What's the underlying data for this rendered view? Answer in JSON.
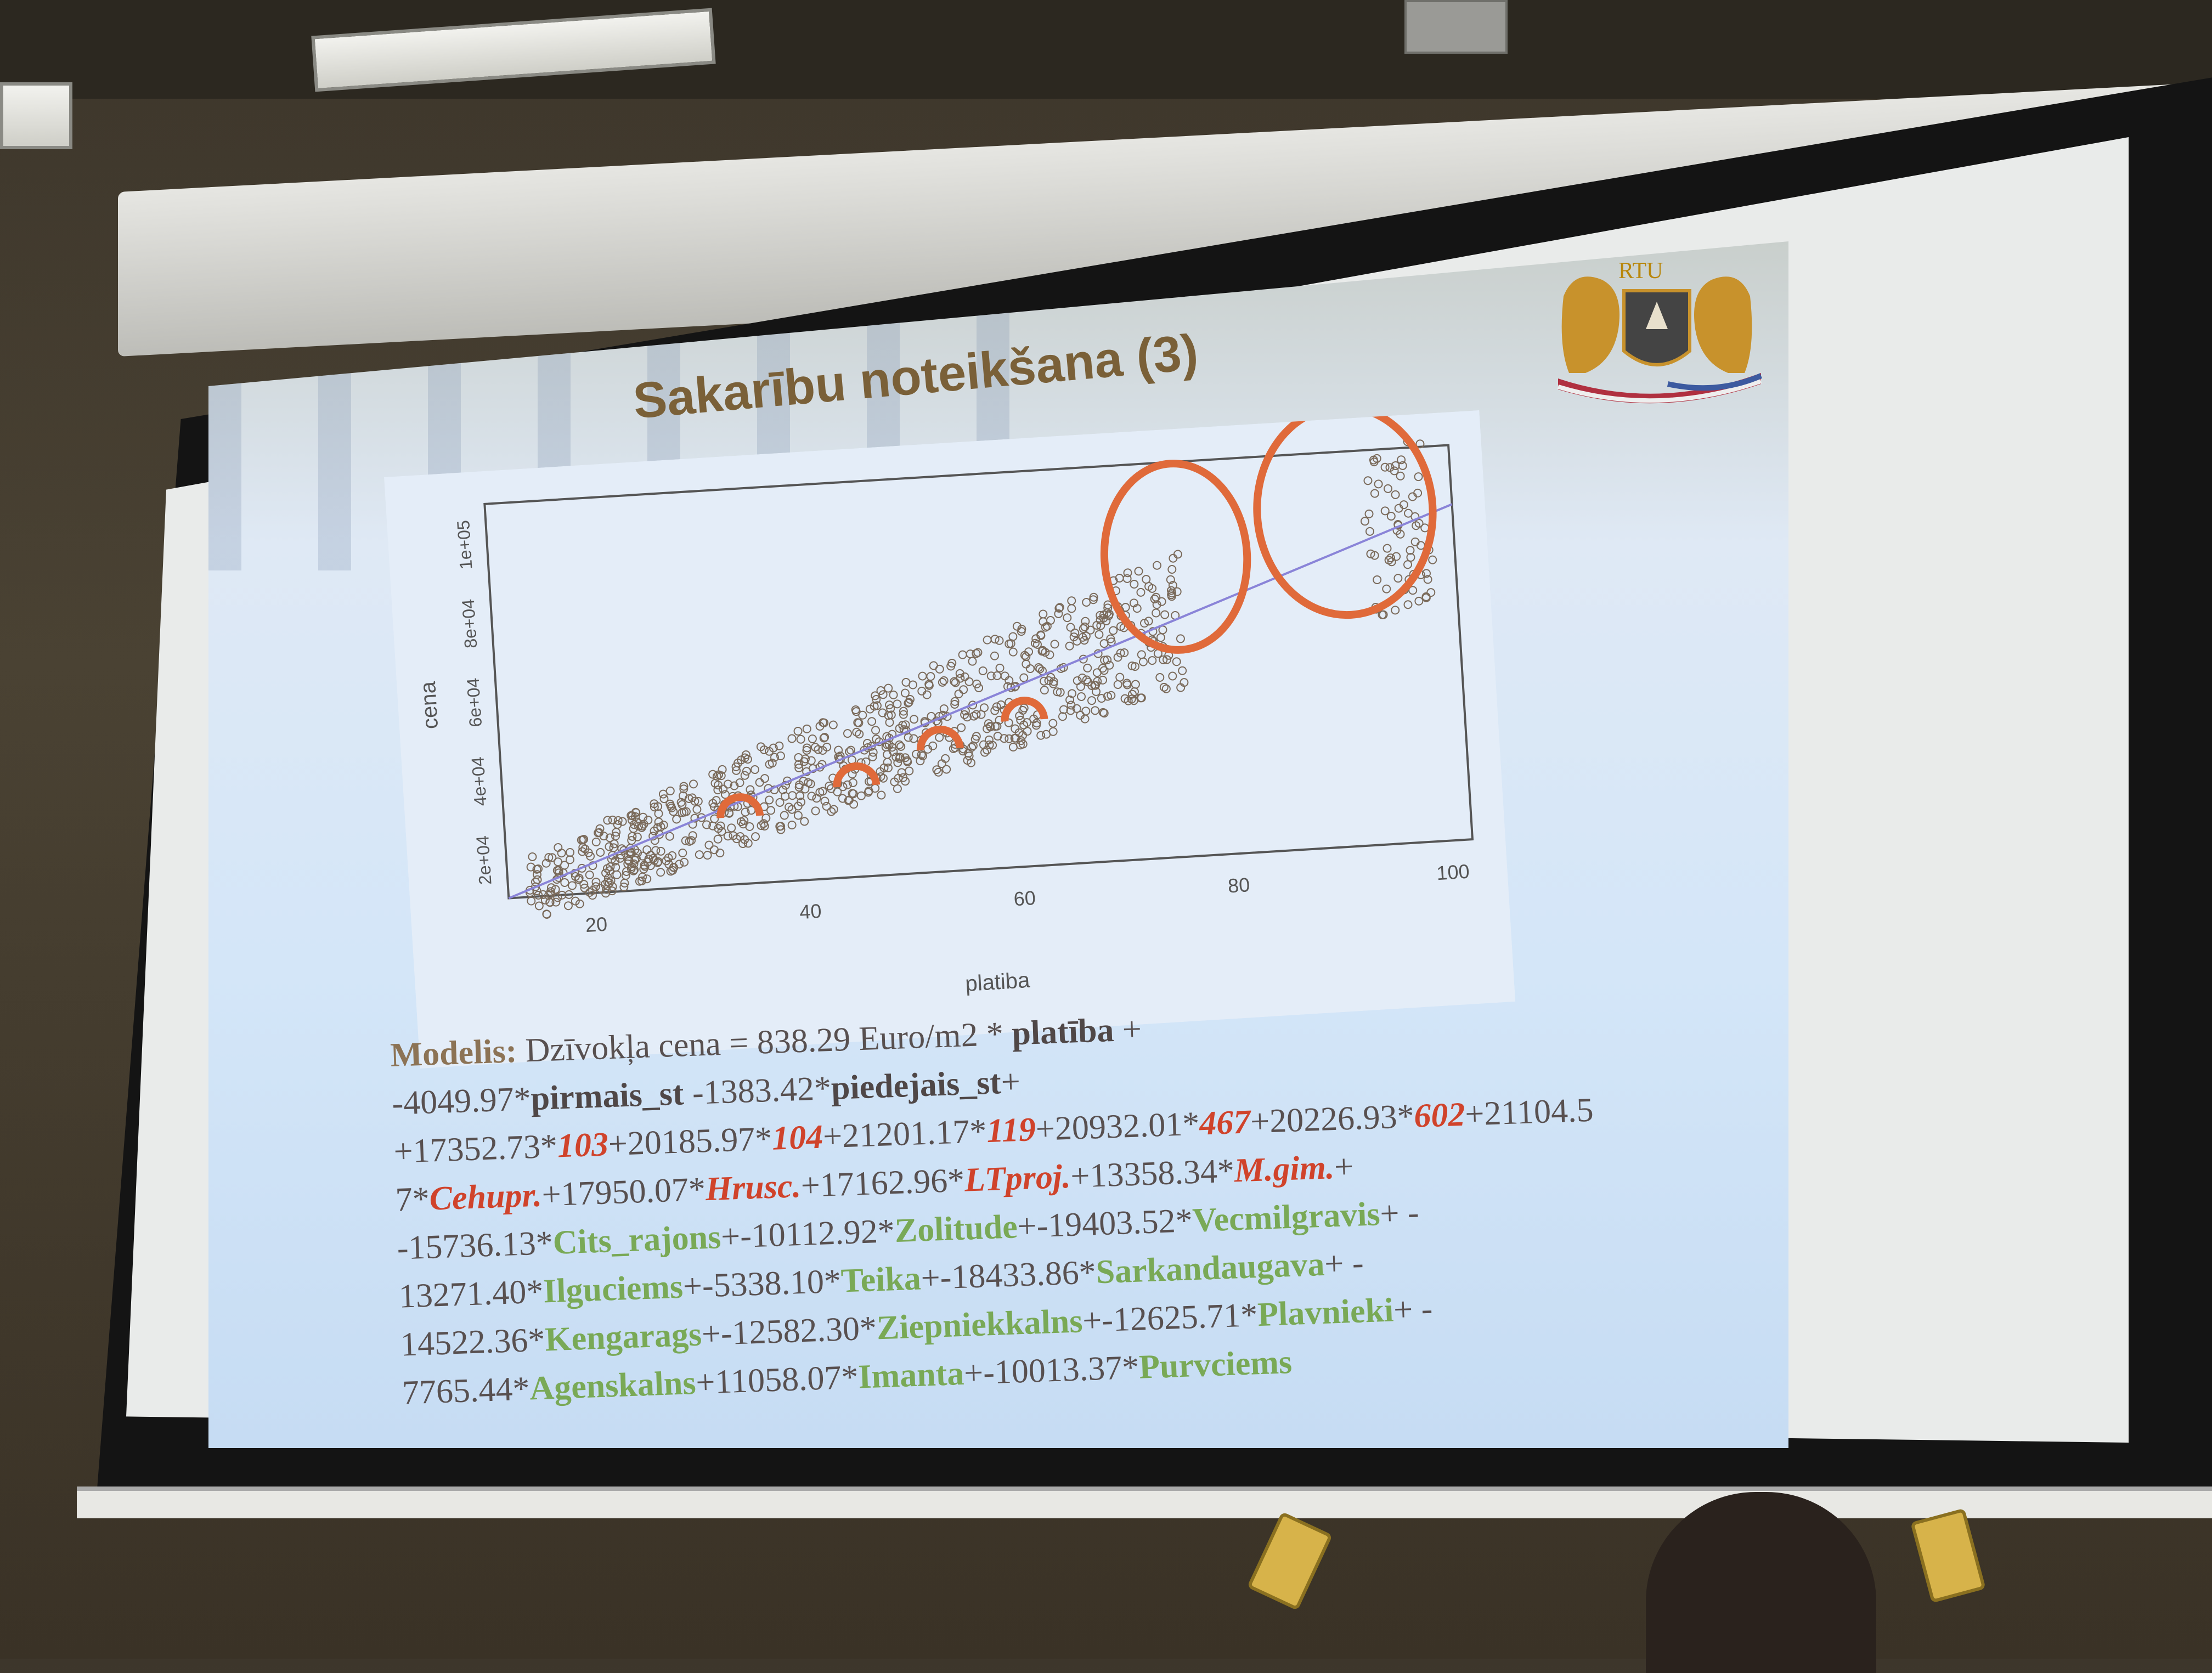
{
  "slide": {
    "title": "Sakarību noteikšana (3)",
    "logo_text": "RTU"
  },
  "chart_data": {
    "type": "scatter",
    "xlabel": "platiba",
    "ylabel": "cena",
    "xticks": [
      "20",
      "40",
      "60",
      "80",
      "100"
    ],
    "yticks": [
      "2e+04",
      "4e+04",
      "6e+04",
      "8e+04",
      "1e+05"
    ],
    "xlim": [
      12,
      102
    ],
    "ylim": [
      10000,
      110000
    ],
    "regression_line": {
      "x": [
        12,
        102
      ],
      "y": [
        10000,
        95000
      ],
      "color": "#8a84d8"
    },
    "highlight_color": "#e06a3a"
  },
  "model": {
    "line1": [
      {
        "t": "Modelis: ",
        "c": "lbl"
      },
      {
        "t": "Dzīvokļa cena = 838.29 Euro/m2 * ",
        "c": ""
      },
      {
        "t": "platība",
        "c": "b"
      },
      {
        "t": " +",
        "c": ""
      }
    ],
    "line2": [
      {
        "t": "-4049.97*",
        "c": ""
      },
      {
        "t": "pirmais_st",
        "c": "b"
      },
      {
        "t": " -1383.42*",
        "c": ""
      },
      {
        "t": "piedejais_st",
        "c": "b"
      },
      {
        "t": "+",
        "c": ""
      }
    ],
    "line3": [
      {
        "t": "+17352.73*",
        "c": ""
      },
      {
        "t": "103",
        "c": "r"
      },
      {
        "t": "+20185.97*",
        "c": ""
      },
      {
        "t": "104",
        "c": "r"
      },
      {
        "t": "+21201.17*",
        "c": ""
      },
      {
        "t": "119",
        "c": "r"
      },
      {
        "t": "+20932.01*",
        "c": ""
      },
      {
        "t": "467",
        "c": "r"
      },
      {
        "t": "+20226.93*",
        "c": ""
      },
      {
        "t": "602",
        "c": "r"
      },
      {
        "t": "+21104.5",
        "c": ""
      }
    ],
    "line4": [
      {
        "t": "7*",
        "c": ""
      },
      {
        "t": "Cehupr.",
        "c": "r"
      },
      {
        "t": "+17950.07*",
        "c": ""
      },
      {
        "t": "Hrusc.",
        "c": "r"
      },
      {
        "t": "+17162.96*",
        "c": ""
      },
      {
        "t": "LTproj.",
        "c": "r"
      },
      {
        "t": "+13358.34*",
        "c": ""
      },
      {
        "t": "M.gim.",
        "c": "r"
      },
      {
        "t": "+",
        "c": ""
      }
    ],
    "line5": [
      {
        "t": "-15736.13*",
        "c": ""
      },
      {
        "t": "Cits_rajons",
        "c": "g"
      },
      {
        "t": "+-10112.92*",
        "c": ""
      },
      {
        "t": "Zolitude",
        "c": "g"
      },
      {
        "t": "+-19403.52*",
        "c": ""
      },
      {
        "t": "Vecmilgravis",
        "c": "g"
      },
      {
        "t": "+ -",
        "c": ""
      }
    ],
    "line6": [
      {
        "t": "13271.40*",
        "c": ""
      },
      {
        "t": "Ilguciems",
        "c": "g"
      },
      {
        "t": "+-5338.10*",
        "c": ""
      },
      {
        "t": "Teika",
        "c": "g"
      },
      {
        "t": "+-18433.86*",
        "c": ""
      },
      {
        "t": "Sarkandaugava",
        "c": "g"
      },
      {
        "t": "+ -",
        "c": ""
      }
    ],
    "line7": [
      {
        "t": "14522.36*",
        "c": ""
      },
      {
        "t": "Kengarags",
        "c": "g"
      },
      {
        "t": "+-12582.30*",
        "c": ""
      },
      {
        "t": "Ziepniekkalns",
        "c": "g"
      },
      {
        "t": "+-12625.71*",
        "c": ""
      },
      {
        "t": "Plavnieki",
        "c": "g"
      },
      {
        "t": "+ -",
        "c": ""
      }
    ],
    "line8": [
      {
        "t": "7765.44*",
        "c": ""
      },
      {
        "t": "Agenskalns",
        "c": "g"
      },
      {
        "t": "+11058.07*",
        "c": ""
      },
      {
        "t": "Imanta",
        "c": "g"
      },
      {
        "t": "+-10013.37*",
        "c": ""
      },
      {
        "t": "Purvciems",
        "c": "g"
      }
    ]
  }
}
